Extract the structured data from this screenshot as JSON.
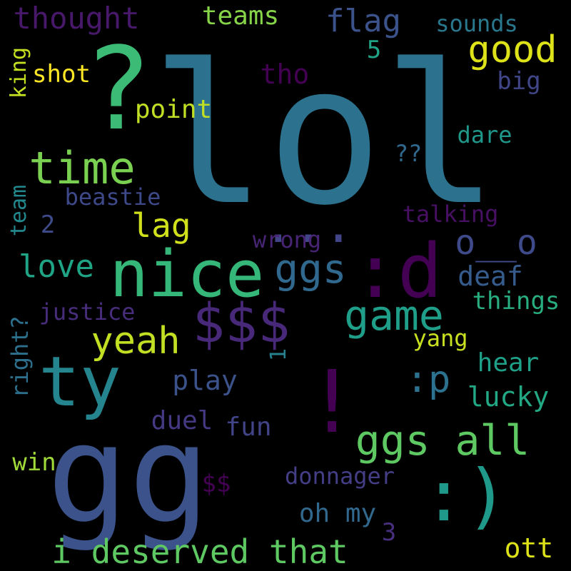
{
  "words": [
    {
      "id": "lol",
      "text": "lol",
      "color": "#2c728e"
    },
    {
      "id": "gg",
      "text": "gg",
      "color": "#3b528b"
    },
    {
      "id": "qmark",
      "text": "?",
      "color": "#3bbb75"
    },
    {
      "id": "nice",
      "text": "nice",
      "color": "#35b779"
    },
    {
      "id": "ty",
      "text": "ty",
      "color": "#25858e"
    },
    {
      "id": "time",
      "text": "time",
      "color": "#7ad151"
    },
    {
      "id": "dollars3",
      "text": "$$$",
      "color": "#482878"
    },
    {
      "id": "colon_d",
      "text": ":d",
      "color": "#440154"
    },
    {
      "id": "smile",
      "text": ":)",
      "color": "#1f9a8a"
    },
    {
      "id": "exclaim",
      "text": "!",
      "color": "#440154"
    },
    {
      "id": "ggs_all",
      "text": "ggs all",
      "color": "#5ec962"
    },
    {
      "id": "i_deserved_that",
      "text": "i deserved that",
      "color": "#5ec962"
    },
    {
      "id": "game",
      "text": "game",
      "color": "#1f9e89"
    },
    {
      "id": "good",
      "text": "good",
      "color": "#dde318"
    },
    {
      "id": "yeah",
      "text": "yeah",
      "color": "#c2df23"
    },
    {
      "id": "ellipsis",
      "text": "...",
      "color": "#414487"
    },
    {
      "id": "ggs",
      "text": "ggs",
      "color": "#31688e"
    },
    {
      "id": "o__o",
      "text": "o__o",
      "color": "#3e4a89"
    },
    {
      "id": "thought",
      "text": "thought",
      "color": "#48186a"
    },
    {
      "id": "flag",
      "text": "flag",
      "color": "#3b528b"
    },
    {
      "id": "teams",
      "text": "teams",
      "color": "#86d549"
    },
    {
      "id": "sounds",
      "text": "sounds",
      "color": "#2a788e"
    },
    {
      "id": "lag",
      "text": "lag",
      "color": "#d0e11c"
    },
    {
      "id": "love",
      "text": "love",
      "color": "#20a486"
    },
    {
      "id": "colon_p",
      "text": ":p",
      "color": "#2c728e"
    },
    {
      "id": "oh_my",
      "text": "oh my",
      "color": "#31688e"
    },
    {
      "id": "lucky",
      "text": "lucky",
      "color": "#22a884"
    },
    {
      "id": "play",
      "text": "play",
      "color": "#3b528b"
    },
    {
      "id": "point",
      "text": "point",
      "color": "#c0df25"
    },
    {
      "id": "shot",
      "text": "shot",
      "color": "#fde725"
    },
    {
      "id": "tho",
      "text": "tho",
      "color": "#440154"
    },
    {
      "id": "big",
      "text": "big",
      "color": "#404688"
    },
    {
      "id": "dare",
      "text": "dare",
      "color": "#1f988b"
    },
    {
      "id": "beastie",
      "text": "beastie",
      "color": "#3e4989"
    },
    {
      "id": "talking",
      "text": "talking",
      "color": "#471063"
    },
    {
      "id": "wrong",
      "text": "wrong",
      "color": "#482475"
    },
    {
      "id": "deaf",
      "text": "deaf",
      "color": "#365c8d"
    },
    {
      "id": "things",
      "text": "things",
      "color": "#29af7f"
    },
    {
      "id": "justice",
      "text": "justice",
      "color": "#472d7b"
    },
    {
      "id": "yang",
      "text": "yang",
      "color": "#c8e020"
    },
    {
      "id": "hear",
      "text": "hear",
      "color": "#1fa088"
    },
    {
      "id": "fun",
      "text": "fun",
      "color": "#414487"
    },
    {
      "id": "duel",
      "text": "duel",
      "color": "#443983"
    },
    {
      "id": "win",
      "text": "win",
      "color": "#a0da39"
    },
    {
      "id": "donnager",
      "text": "donnager",
      "color": "#433e85"
    },
    {
      "id": "ott",
      "text": "ott",
      "color": "#dde318"
    },
    {
      "id": "dollars2",
      "text": "$$",
      "color": "#440154"
    },
    {
      "id": "qq",
      "text": "??",
      "color": "#31688e"
    },
    {
      "id": "num5",
      "text": "5",
      "color": "#20a386"
    },
    {
      "id": "num2",
      "text": "2",
      "color": "#3e4a89"
    },
    {
      "id": "num1",
      "text": "1",
      "color": "#26828e"
    },
    {
      "id": "num3",
      "text": "3",
      "color": "#472f7d"
    },
    {
      "id": "king",
      "text": "king",
      "color": "#c5e021"
    },
    {
      "id": "team",
      "text": "team",
      "color": "#23898e"
    },
    {
      "id": "right_q",
      "text": "right?",
      "color": "#2d708e"
    }
  ]
}
